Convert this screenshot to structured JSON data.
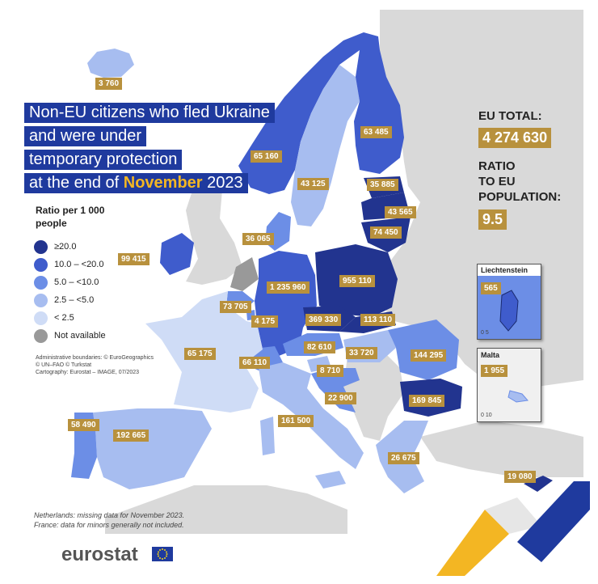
{
  "title_lines": [
    {
      "text": "Non-EU citizens who fled Ukraine"
    },
    {
      "text": "and were under"
    },
    {
      "text": "temporary protection"
    },
    {
      "before": "at the end of ",
      "highlight": "November",
      "after": " 2023"
    }
  ],
  "legend": {
    "title": "Ratio per 1 000 people",
    "items": [
      {
        "label": "≥20.0",
        "color": "#22348f"
      },
      {
        "label": "10.0 – <20.0",
        "color": "#3f5ccc"
      },
      {
        "label": "5.0 – <10.0",
        "color": "#6c8ee6"
      },
      {
        "label": "2.5 – <5.0",
        "color": "#a7bdf0"
      },
      {
        "label": "< 2.5",
        "color": "#cfdcf6"
      },
      {
        "label": "Not available",
        "color": "#999999"
      }
    ]
  },
  "credits": [
    "Administrative boundaries: © EuroGeographics",
    "© UN–FAO © Turkstat",
    "Cartography: Eurostat – IMAGE, 07/2023"
  ],
  "notes": [
    "Netherlands: missing data for November 2023.",
    "France: data for minors generally not included."
  ],
  "eu_total": {
    "label": "EU TOTAL:",
    "value": "4 274 630"
  },
  "ratio": {
    "label_lines": [
      "RATIO",
      "TO EU",
      "POPULATION:"
    ],
    "value": "9.5"
  },
  "insets": {
    "liechtenstein": {
      "title": "Liechtenstein",
      "value": "565",
      "scale": "0  5"
    },
    "malta": {
      "title": "Malta",
      "value": "1 955",
      "scale": "0  10"
    }
  },
  "logo": "eurostat",
  "countries": [
    {
      "name": "Iceland",
      "value": "3 760",
      "category": "2.5 – <5.0"
    },
    {
      "name": "Norway",
      "value": "65 160",
      "category": "10.0 – <20.0"
    },
    {
      "name": "Sweden",
      "value": "43 125",
      "category": "2.5 – <5.0"
    },
    {
      "name": "Finland",
      "value": "63 485",
      "category": "10.0 – <20.0"
    },
    {
      "name": "Estonia",
      "value": "35 885",
      "category": "≥20.0"
    },
    {
      "name": "Latvia",
      "value": "43 565",
      "category": "≥20.0"
    },
    {
      "name": "Lithuania",
      "value": "74 450",
      "category": "≥20.0"
    },
    {
      "name": "Denmark",
      "value": "36 065",
      "category": "5.0 – <10.0"
    },
    {
      "name": "Ireland",
      "value": "99 415",
      "category": "10.0 – <20.0"
    },
    {
      "name": "Germany",
      "value": "1 235 960",
      "category": "10.0 – <20.0"
    },
    {
      "name": "Poland",
      "value": "955 110",
      "category": "≥20.0"
    },
    {
      "name": "Belgium",
      "value": "73 705",
      "category": "5.0 – <10.0"
    },
    {
      "name": "Luxembourg",
      "value": "4 175",
      "category": "5.0 – <10.0"
    },
    {
      "name": "Czechia",
      "value": "369 330",
      "category": "≥20.0"
    },
    {
      "name": "Slovakia",
      "value": "113 110",
      "category": "≥20.0"
    },
    {
      "name": "France",
      "value": "65 175",
      "category": "< 2.5"
    },
    {
      "name": "Switzerland",
      "value": "66 110",
      "category": "5.0 – <10.0"
    },
    {
      "name": "Austria",
      "value": "82 610",
      "category": "5.0 – <10.0"
    },
    {
      "name": "Hungary",
      "value": "33 720",
      "category": "2.5 – <5.0"
    },
    {
      "name": "Romania",
      "value": "144 295",
      "category": "5.0 – <10.0"
    },
    {
      "name": "Slovenia",
      "value": "8 710",
      "category": "2.5 – <5.0"
    },
    {
      "name": "Croatia",
      "value": "22 900",
      "category": "5.0 – <10.0"
    },
    {
      "name": "Bulgaria",
      "value": "169 845",
      "category": "≥20.0"
    },
    {
      "name": "Italy",
      "value": "161 500",
      "category": "2.5 – <5.0"
    },
    {
      "name": "Portugal",
      "value": "58 490",
      "category": "5.0 – <10.0"
    },
    {
      "name": "Spain",
      "value": "192 665",
      "category": "2.5 – <5.0"
    },
    {
      "name": "Greece",
      "value": "26 675",
      "category": "2.5 – <5.0"
    },
    {
      "name": "Cyprus",
      "value": "19 080",
      "category": "≥20.0"
    },
    {
      "name": "Liechtenstein",
      "value": "565",
      "category": "10.0 – <20.0"
    },
    {
      "name": "Malta",
      "value": "1 955",
      "category": "2.5 – <5.0"
    },
    {
      "name": "Netherlands",
      "value": "",
      "category": "Not available"
    }
  ]
}
